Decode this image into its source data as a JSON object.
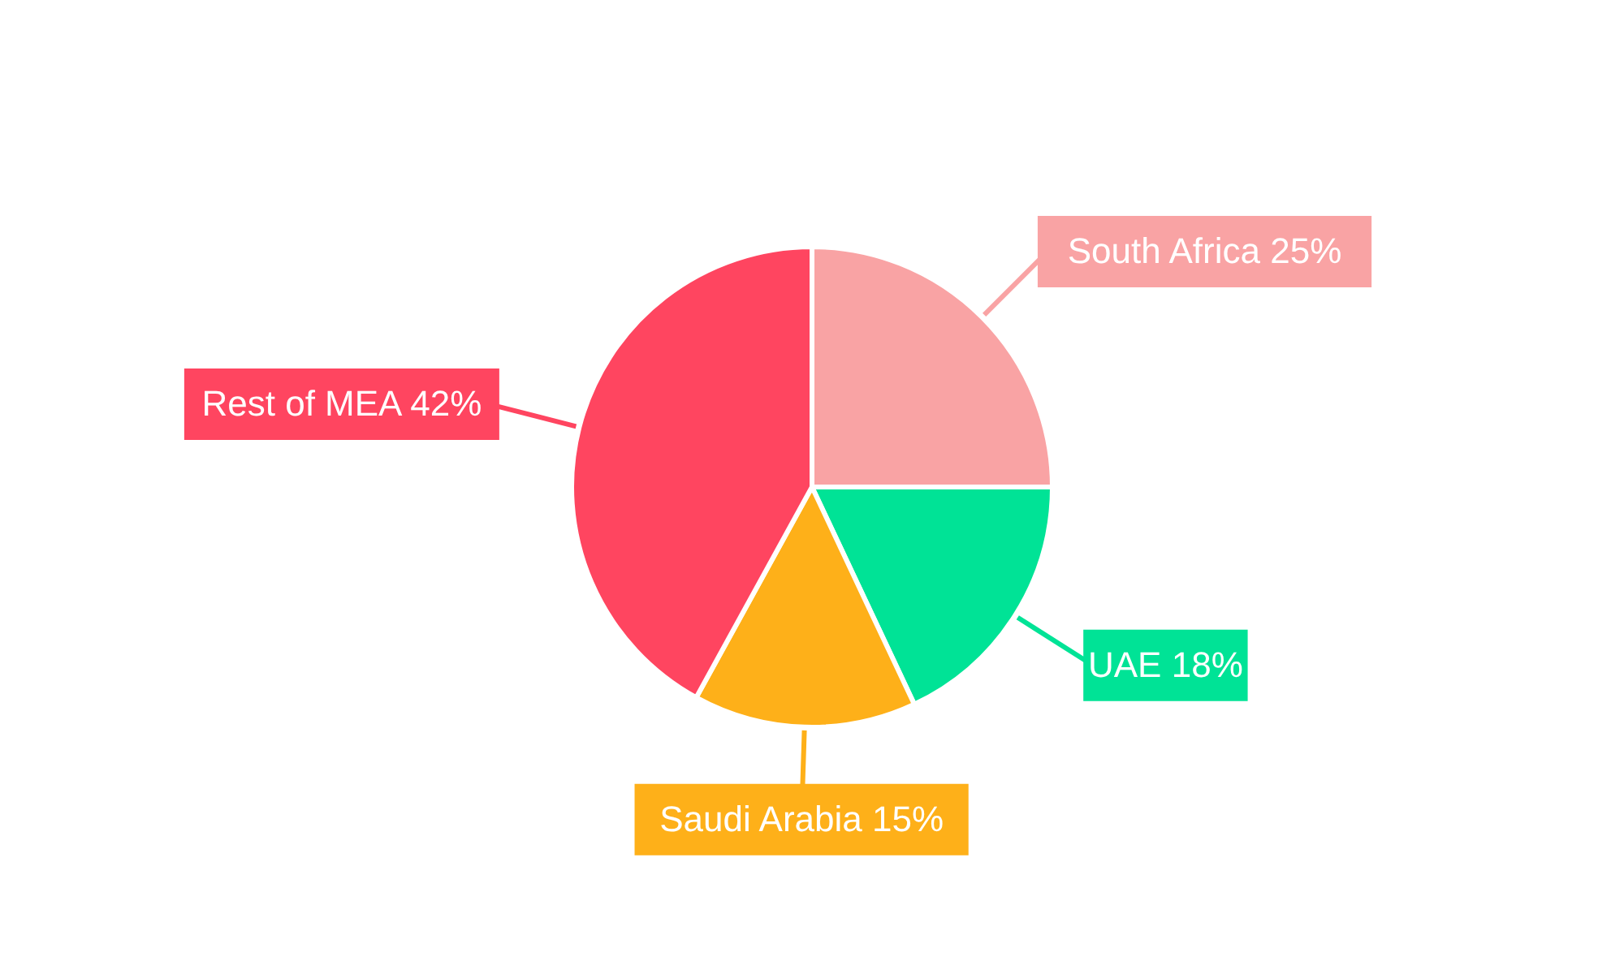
{
  "chart_data": {
    "type": "pie",
    "categories": [
      "South Africa",
      "UAE",
      "Saudi Arabia",
      "Rest of MEA"
    ],
    "values": [
      25,
      18,
      15,
      42
    ],
    "value_labels": [
      "25%",
      "18%",
      "15%",
      "42%"
    ],
    "colors": [
      "#f9a3a4",
      "#00e396",
      "#feb019",
      "#ff4560"
    ]
  }
}
